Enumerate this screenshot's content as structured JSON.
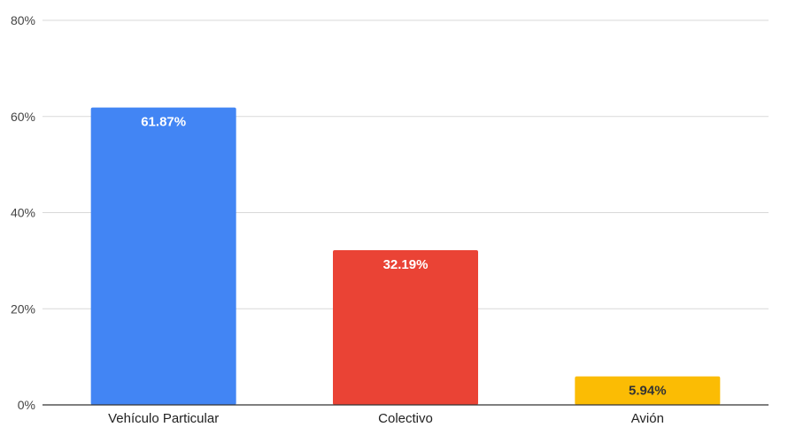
{
  "chart_data": {
    "type": "bar",
    "title": "",
    "xlabel": "",
    "ylabel": "",
    "categories": [
      "Vehículo Particular",
      "Colectivo",
      "Avión"
    ],
    "values": [
      61.87,
      32.19,
      5.94
    ],
    "value_labels": [
      "61.87%",
      "32.19%",
      "5.94%"
    ],
    "bar_colors": [
      "#4285f4",
      "#ea4335",
      "#fbbc04"
    ],
    "label_colors": [
      "#ffffff",
      "#ffffff",
      "#333333"
    ],
    "ylim": [
      0,
      80
    ],
    "yticks": [
      0,
      20,
      40,
      60,
      80
    ],
    "ytick_labels": [
      "0%",
      "20%",
      "40%",
      "60%",
      "80%"
    ],
    "grid": true,
    "legend": "none"
  }
}
